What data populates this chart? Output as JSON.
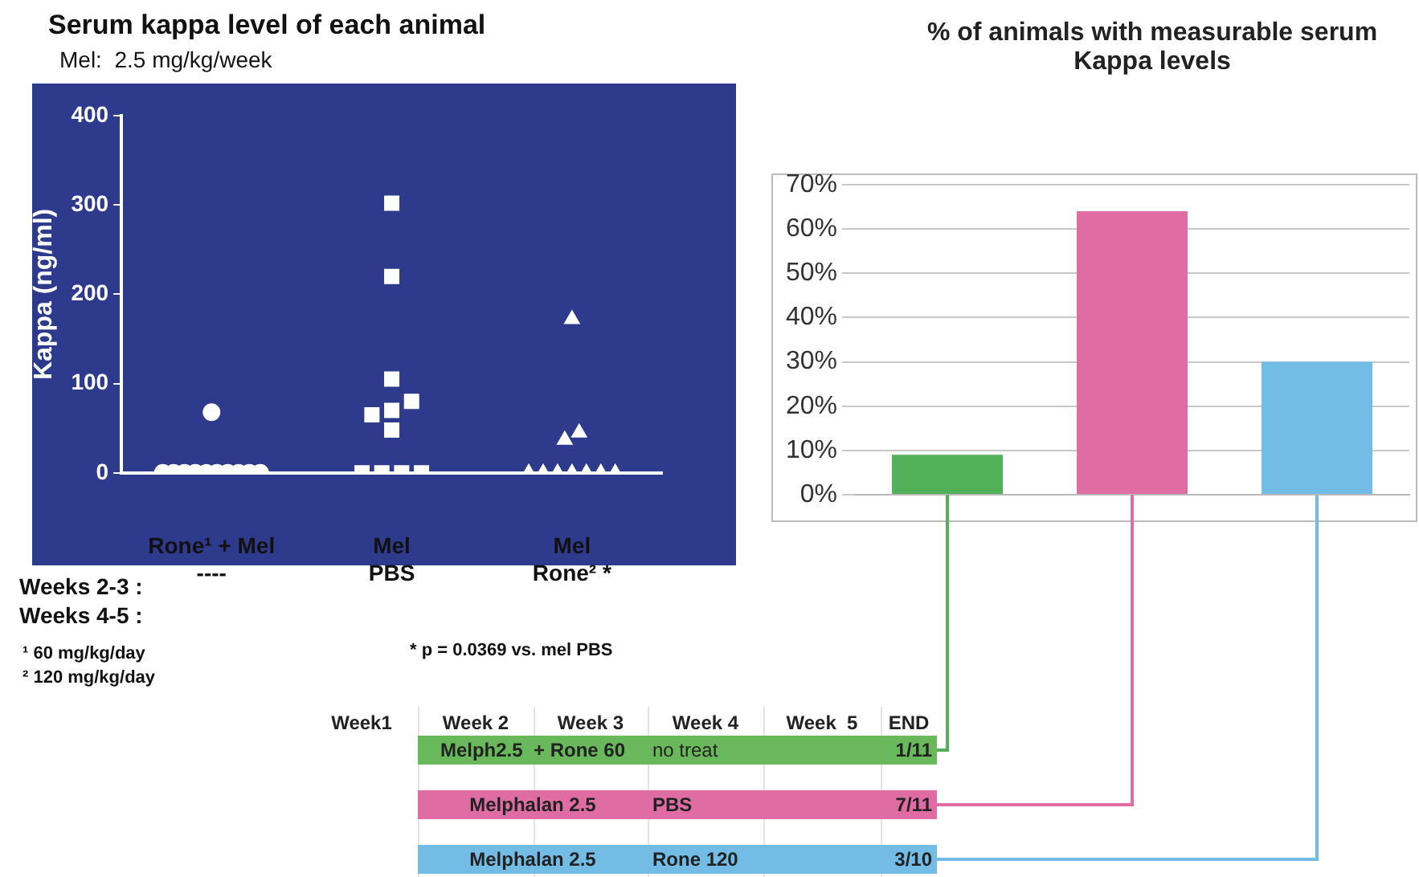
{
  "chart_data": [
    {
      "type": "scatter",
      "title": "Serum kappa level of each animal",
      "subtitle": "Mel:  2.5 mg/kg/week",
      "ylabel": "Kappa (ng/ml)",
      "categories": [
        "Rone¹ + Mel\n----",
        "Mel\nPBS",
        "Mel\nRone² *"
      ],
      "ylim": [
        0,
        400
      ],
      "yticks": [
        0,
        100,
        200,
        300,
        400
      ],
      "grid": false,
      "legend": false,
      "series": [
        {
          "color": "#ffffff",
          "marker": "circle",
          "x": [
            "Rone¹ + Mel\n----",
            "Rone¹ + Mel\n----",
            "Rone¹ + Mel\n----",
            "Rone¹ + Mel\n----",
            "Rone¹ + Mel\n----",
            "Rone¹ + Mel\n----",
            "Rone¹ + Mel\n----",
            "Rone¹ + Mel\n----",
            "Rone¹ + Mel\n----",
            "Rone¹ + Mel\n----",
            "Rone¹ + Mel\n----"
          ],
          "values": [
            68,
            0,
            0,
            0,
            0,
            0,
            0,
            0,
            0,
            0,
            0
          ]
        },
        {
          "color": "#ffffff",
          "marker": "square",
          "x": [
            "Mel\nPBS",
            "Mel\nPBS",
            "Mel\nPBS",
            "Mel\nPBS",
            "Mel\nPBS",
            "Mel\nPBS",
            "Mel\nPBS",
            "Mel\nPBS",
            "Mel\nPBS",
            "Mel\nPBS",
            "Mel\nPBS"
          ],
          "values": [
            302,
            220,
            105,
            80,
            70,
            65,
            48,
            0,
            0,
            0,
            0
          ]
        },
        {
          "color": "#ffffff",
          "marker": "triangle",
          "x": [
            "Mel\nRone² *",
            "Mel\nRone² *",
            "Mel\nRone² *",
            "Mel\nRone² *",
            "Mel\nRone² *",
            "Mel\nRone² *",
            "Mel\nRone² *",
            "Mel\nRone² *",
            "Mel\nRone² *",
            "Mel\nRone² *"
          ],
          "values": [
            172,
            45,
            37,
            0,
            0,
            0,
            0,
            0,
            0,
            0
          ]
        }
      ],
      "annotations": [
        "Weeks 2-3 :",
        "Weeks 4-5 :",
        "¹ 60 mg/kg/day",
        "² 120 mg/kg/day",
        "* p = 0.0369 vs. mel PBS"
      ]
    },
    {
      "type": "bar",
      "title": "% of animals with measurable serum Kappa levels",
      "categories": [
        null,
        null,
        null
      ],
      "values": [
        9,
        64,
        30
      ],
      "colors": [
        "#52b058",
        "#e06ca4",
        "#72bce6"
      ],
      "ylim": [
        0,
        70
      ],
      "yticks": [
        {
          "value": 0,
          "label": "0%"
        },
        {
          "value": 10,
          "label": "10%"
        },
        {
          "value": 20,
          "label": "20%"
        },
        {
          "value": 30,
          "label": "30%"
        },
        {
          "value": 40,
          "label": "40%"
        },
        {
          "value": 50,
          "label": "50%"
        },
        {
          "value": 60,
          "label": "60%"
        },
        {
          "value": 70,
          "label": "70%"
        }
      ],
      "grid": "y",
      "legend": false
    },
    {
      "type": "other",
      "categories": [
        "Week1",
        "Week 2",
        "Week 3",
        "Week 4",
        "Week  5",
        "END"
      ],
      "colors": [
        "#6ab85c",
        "#e06ca4",
        "#72bce6"
      ],
      "annotations": [
        "Melph2.5  + Rone 60",
        "no treat",
        "1/11",
        "Melphalan 2.5",
        "PBS",
        "7/11",
        "Melphalan 2.5",
        "Rone 120",
        "3/10"
      ]
    }
  ]
}
